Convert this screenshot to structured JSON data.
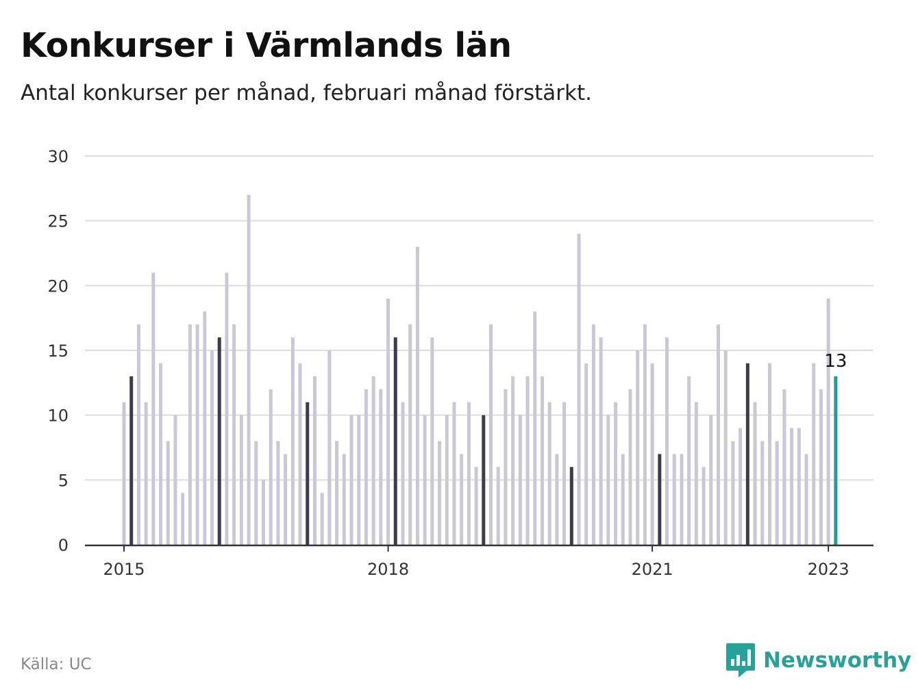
{
  "title": "Konkurser i Värmlands län",
  "subtitle": "Antal konkurser per månad, februari månad förstärkt.",
  "source": "Källa: UC",
  "brand": {
    "name": "Newsworthy",
    "color": "#2aa198"
  },
  "colors": {
    "bar": "#c9c8d3",
    "highlight": "#3e3c4c",
    "latest": "#1aa193",
    "grid": "#dddddd",
    "axis": "#333333"
  },
  "chart_data": {
    "type": "bar",
    "title": "Konkurser i Värmlands län",
    "subtitle": "Antal konkurser per månad, februari månad förstärkt.",
    "xlabel": "",
    "ylabel": "",
    "ylim": [
      0,
      30
    ],
    "yticks": [
      0,
      5,
      10,
      15,
      20,
      25,
      30
    ],
    "xticks": [
      {
        "label": "2015",
        "index": 0
      },
      {
        "label": "2018",
        "index": 36
      },
      {
        "label": "2021",
        "index": 72
      },
      {
        "label": "2023",
        "index": 96
      }
    ],
    "start": "2015-01",
    "end": "2023-02",
    "highlight": "February of each year",
    "values": [
      11,
      13,
      17,
      11,
      21,
      14,
      8,
      10,
      4,
      17,
      17,
      18,
      15,
      16,
      21,
      17,
      10,
      27,
      8,
      5,
      12,
      8,
      7,
      16,
      14,
      11,
      13,
      4,
      15,
      8,
      7,
      10,
      10,
      12,
      13,
      12,
      19,
      16,
      11,
      17,
      23,
      10,
      16,
      8,
      10,
      11,
      7,
      11,
      6,
      10,
      17,
      6,
      12,
      13,
      10,
      13,
      18,
      13,
      11,
      7,
      11,
      6,
      24,
      14,
      17,
      16,
      10,
      11,
      7,
      12,
      15,
      17,
      14,
      7,
      16,
      7,
      7,
      13,
      11,
      6,
      10,
      17,
      15,
      8,
      9,
      14,
      11,
      8,
      14,
      8,
      12,
      9,
      9,
      7,
      14,
      12,
      19,
      13
    ],
    "annotations": [
      {
        "index": 97,
        "label": "13"
      }
    ],
    "grid": true,
    "legend": "none"
  }
}
